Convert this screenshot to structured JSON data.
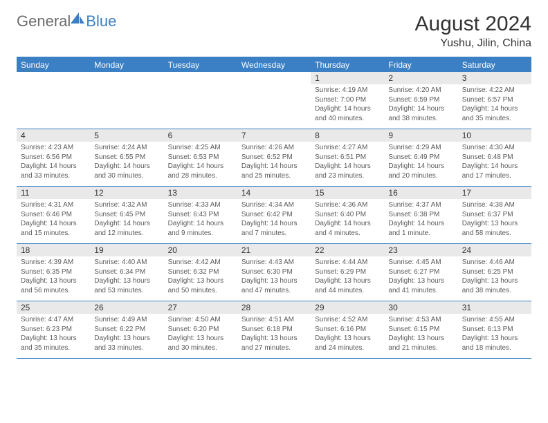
{
  "logo": {
    "part1": "General",
    "part2": "Blue"
  },
  "title": "August 2024",
  "location": "Yushu, Jilin, China",
  "colors": {
    "brand": "#3b7fc4",
    "gray_text": "#6d6d6d",
    "cell_header_bg": "#e9e9e9",
    "body_text": "#5a5a5a",
    "background": "#ffffff"
  },
  "dow": [
    "Sunday",
    "Monday",
    "Tuesday",
    "Wednesday",
    "Thursday",
    "Friday",
    "Saturday"
  ],
  "weeks": [
    [
      {
        "day": "",
        "sunrise": "",
        "sunset": "",
        "daylight": ""
      },
      {
        "day": "",
        "sunrise": "",
        "sunset": "",
        "daylight": ""
      },
      {
        "day": "",
        "sunrise": "",
        "sunset": "",
        "daylight": ""
      },
      {
        "day": "",
        "sunrise": "",
        "sunset": "",
        "daylight": ""
      },
      {
        "day": "1",
        "sunrise": "Sunrise: 4:19 AM",
        "sunset": "Sunset: 7:00 PM",
        "daylight": "Daylight: 14 hours and 40 minutes."
      },
      {
        "day": "2",
        "sunrise": "Sunrise: 4:20 AM",
        "sunset": "Sunset: 6:59 PM",
        "daylight": "Daylight: 14 hours and 38 minutes."
      },
      {
        "day": "3",
        "sunrise": "Sunrise: 4:22 AM",
        "sunset": "Sunset: 6:57 PM",
        "daylight": "Daylight: 14 hours and 35 minutes."
      }
    ],
    [
      {
        "day": "4",
        "sunrise": "Sunrise: 4:23 AM",
        "sunset": "Sunset: 6:56 PM",
        "daylight": "Daylight: 14 hours and 33 minutes."
      },
      {
        "day": "5",
        "sunrise": "Sunrise: 4:24 AM",
        "sunset": "Sunset: 6:55 PM",
        "daylight": "Daylight: 14 hours and 30 minutes."
      },
      {
        "day": "6",
        "sunrise": "Sunrise: 4:25 AM",
        "sunset": "Sunset: 6:53 PM",
        "daylight": "Daylight: 14 hours and 28 minutes."
      },
      {
        "day": "7",
        "sunrise": "Sunrise: 4:26 AM",
        "sunset": "Sunset: 6:52 PM",
        "daylight": "Daylight: 14 hours and 25 minutes."
      },
      {
        "day": "8",
        "sunrise": "Sunrise: 4:27 AM",
        "sunset": "Sunset: 6:51 PM",
        "daylight": "Daylight: 14 hours and 23 minutes."
      },
      {
        "day": "9",
        "sunrise": "Sunrise: 4:29 AM",
        "sunset": "Sunset: 6:49 PM",
        "daylight": "Daylight: 14 hours and 20 minutes."
      },
      {
        "day": "10",
        "sunrise": "Sunrise: 4:30 AM",
        "sunset": "Sunset: 6:48 PM",
        "daylight": "Daylight: 14 hours and 17 minutes."
      }
    ],
    [
      {
        "day": "11",
        "sunrise": "Sunrise: 4:31 AM",
        "sunset": "Sunset: 6:46 PM",
        "daylight": "Daylight: 14 hours and 15 minutes."
      },
      {
        "day": "12",
        "sunrise": "Sunrise: 4:32 AM",
        "sunset": "Sunset: 6:45 PM",
        "daylight": "Daylight: 14 hours and 12 minutes."
      },
      {
        "day": "13",
        "sunrise": "Sunrise: 4:33 AM",
        "sunset": "Sunset: 6:43 PM",
        "daylight": "Daylight: 14 hours and 9 minutes."
      },
      {
        "day": "14",
        "sunrise": "Sunrise: 4:34 AM",
        "sunset": "Sunset: 6:42 PM",
        "daylight": "Daylight: 14 hours and 7 minutes."
      },
      {
        "day": "15",
        "sunrise": "Sunrise: 4:36 AM",
        "sunset": "Sunset: 6:40 PM",
        "daylight": "Daylight: 14 hours and 4 minutes."
      },
      {
        "day": "16",
        "sunrise": "Sunrise: 4:37 AM",
        "sunset": "Sunset: 6:38 PM",
        "daylight": "Daylight: 14 hours and 1 minute."
      },
      {
        "day": "17",
        "sunrise": "Sunrise: 4:38 AM",
        "sunset": "Sunset: 6:37 PM",
        "daylight": "Daylight: 13 hours and 58 minutes."
      }
    ],
    [
      {
        "day": "18",
        "sunrise": "Sunrise: 4:39 AM",
        "sunset": "Sunset: 6:35 PM",
        "daylight": "Daylight: 13 hours and 56 minutes."
      },
      {
        "day": "19",
        "sunrise": "Sunrise: 4:40 AM",
        "sunset": "Sunset: 6:34 PM",
        "daylight": "Daylight: 13 hours and 53 minutes."
      },
      {
        "day": "20",
        "sunrise": "Sunrise: 4:42 AM",
        "sunset": "Sunset: 6:32 PM",
        "daylight": "Daylight: 13 hours and 50 minutes."
      },
      {
        "day": "21",
        "sunrise": "Sunrise: 4:43 AM",
        "sunset": "Sunset: 6:30 PM",
        "daylight": "Daylight: 13 hours and 47 minutes."
      },
      {
        "day": "22",
        "sunrise": "Sunrise: 4:44 AM",
        "sunset": "Sunset: 6:29 PM",
        "daylight": "Daylight: 13 hours and 44 minutes."
      },
      {
        "day": "23",
        "sunrise": "Sunrise: 4:45 AM",
        "sunset": "Sunset: 6:27 PM",
        "daylight": "Daylight: 13 hours and 41 minutes."
      },
      {
        "day": "24",
        "sunrise": "Sunrise: 4:46 AM",
        "sunset": "Sunset: 6:25 PM",
        "daylight": "Daylight: 13 hours and 38 minutes."
      }
    ],
    [
      {
        "day": "25",
        "sunrise": "Sunrise: 4:47 AM",
        "sunset": "Sunset: 6:23 PM",
        "daylight": "Daylight: 13 hours and 35 minutes."
      },
      {
        "day": "26",
        "sunrise": "Sunrise: 4:49 AM",
        "sunset": "Sunset: 6:22 PM",
        "daylight": "Daylight: 13 hours and 33 minutes."
      },
      {
        "day": "27",
        "sunrise": "Sunrise: 4:50 AM",
        "sunset": "Sunset: 6:20 PM",
        "daylight": "Daylight: 13 hours and 30 minutes."
      },
      {
        "day": "28",
        "sunrise": "Sunrise: 4:51 AM",
        "sunset": "Sunset: 6:18 PM",
        "daylight": "Daylight: 13 hours and 27 minutes."
      },
      {
        "day": "29",
        "sunrise": "Sunrise: 4:52 AM",
        "sunset": "Sunset: 6:16 PM",
        "daylight": "Daylight: 13 hours and 24 minutes."
      },
      {
        "day": "30",
        "sunrise": "Sunrise: 4:53 AM",
        "sunset": "Sunset: 6:15 PM",
        "daylight": "Daylight: 13 hours and 21 minutes."
      },
      {
        "day": "31",
        "sunrise": "Sunrise: 4:55 AM",
        "sunset": "Sunset: 6:13 PM",
        "daylight": "Daylight: 13 hours and 18 minutes."
      }
    ]
  ]
}
